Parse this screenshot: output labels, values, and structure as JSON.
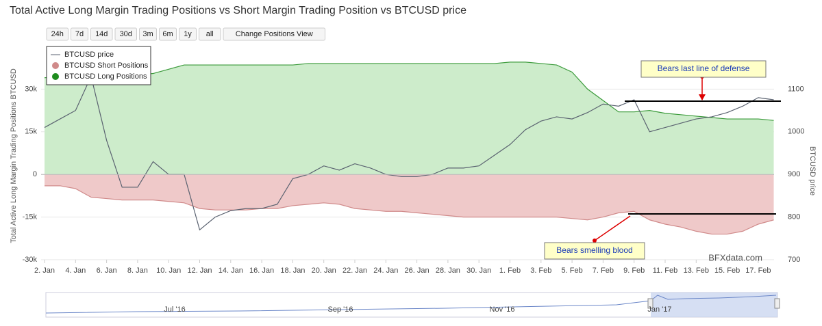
{
  "chart_data": {
    "type": "area",
    "title": "Total Active Long Margin Trading Positions vs Short Margin Trading Position vs BTCUSD price",
    "y_label": "Total Active Long Margin Trading Positions BTCUSD",
    "y2_label": "BTCUSD price",
    "buttons": [
      "24h",
      "7d",
      "14d",
      "30d",
      "3m",
      "6m",
      "1y",
      "all",
      "Change Positions View"
    ],
    "categories": [
      "2. Jan",
      null,
      "4. Jan",
      null,
      "6. Jan",
      null,
      "8. Jan",
      null,
      "10. Jan",
      null,
      "12. Jan",
      null,
      "14. Jan",
      null,
      "16. Jan",
      null,
      "18. Jan",
      null,
      "20. Jan",
      null,
      "22. Jan",
      null,
      "24. Jan",
      null,
      "26. Jan",
      null,
      "28. Jan",
      null,
      "30. Jan",
      null,
      "1. Feb",
      null,
      "3. Feb",
      null,
      "5. Feb",
      null,
      "7. Feb",
      null,
      "9. Feb",
      null,
      "11. Feb",
      null,
      "13. Feb",
      null,
      "15. Feb",
      null,
      "17. Feb",
      null
    ],
    "series": [
      {
        "name": "BTCUSD Long Positions",
        "color": "#3a9a3a",
        "fill": "#cdeccb",
        "values": [
          34000,
          34500,
          35000,
          35500,
          34500,
          35000,
          35000,
          35500,
          37000,
          38500,
          38500,
          38500,
          38500,
          38500,
          38500,
          38500,
          38500,
          39000,
          39000,
          39000,
          39000,
          39000,
          39000,
          39000,
          39000,
          39000,
          39000,
          39000,
          39000,
          39000,
          39500,
          39500,
          39000,
          38500,
          36000,
          30000,
          26000,
          22000,
          22000,
          22500,
          21500,
          21000,
          20500,
          20000,
          19500,
          19500,
          19500,
          19000
        ]
      },
      {
        "name": "BTCUSD Short Positions",
        "color": "#d08a8a",
        "fill": "#efc9c9",
        "values": [
          -4000,
          -4000,
          -5000,
          -8000,
          -8500,
          -9000,
          -9000,
          -9000,
          -9500,
          -10000,
          -12000,
          -12500,
          -12500,
          -12500,
          -12000,
          -12000,
          -11000,
          -10500,
          -10000,
          -10500,
          -12000,
          -12500,
          -13000,
          -13000,
          -13500,
          -14000,
          -14500,
          -15000,
          -15000,
          -15000,
          -15000,
          -15000,
          -15000,
          -15000,
          -15500,
          -16000,
          -15000,
          -13500,
          -13000,
          -16000,
          -17500,
          -18500,
          -20000,
          -21000,
          -21000,
          -20000,
          -17500,
          -16000
        ]
      },
      {
        "name": "BTCUSD price",
        "type": "line",
        "axis": "y2",
        "color": "#5a6270",
        "values": [
          1010,
          1030,
          1050,
          1130,
          980,
          870,
          870,
          930,
          900,
          900,
          770,
          800,
          815,
          820,
          820,
          830,
          890,
          900,
          920,
          910,
          925,
          915,
          900,
          895,
          895,
          900,
          915,
          915,
          920,
          945,
          970,
          1005,
          1025,
          1035,
          1030,
          1045,
          1065,
          1060,
          1075,
          1000,
          1010,
          1020,
          1030,
          1035,
          1045,
          1060,
          1080,
          1075
        ]
      }
    ],
    "ylim": [
      -30000,
      45000
    ],
    "yticks": [
      {
        "value": -30000,
        "label": "-30k"
      },
      {
        "value": -15000,
        "label": "-15k"
      },
      0,
      {
        "value": 15000,
        "label": "15k"
      },
      {
        "value": 30000,
        "label": "30k"
      }
    ],
    "y2lim": [
      700,
      1200
    ],
    "y2ticks": [
      700,
      800,
      900,
      1000,
      1100
    ],
    "grid": true,
    "legend": "top-left",
    "annotations": [
      "Bears last line of defense",
      "Bears smelling blood"
    ],
    "credit": "BFXdata.com",
    "navigator": [
      "Jul '16",
      "Sep '16",
      "Nov '16",
      "Jan '17"
    ]
  }
}
